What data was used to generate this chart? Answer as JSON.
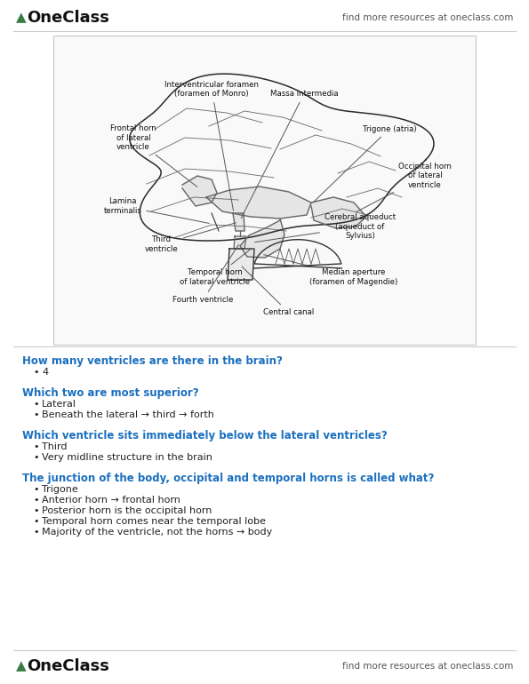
{
  "bg_color": "#ffffff",
  "header_logo_color": "#3a7d44",
  "header_right_text": "find more resources at oneclass.com",
  "footer_logo_color": "#3a7d44",
  "footer_right_text": "find more resources at oneclass.com",
  "divider_color": "#cccccc",
  "questions": [
    {
      "question": "How many ventricles are there in the brain?",
      "bullets": [
        "4"
      ]
    },
    {
      "question": "Which two are most superior?",
      "bullets": [
        "Lateral",
        "Beneath the lateral → third → forth"
      ]
    },
    {
      "question": "Which ventricle sits immediately below the lateral ventricles?",
      "bullets": [
        "Third",
        "Very midline structure in the brain"
      ]
    },
    {
      "question": "The junction of the body, occipital and temporal horns is called what?",
      "bullets": [
        "Trigone",
        "Anterior horn → frontal horn",
        "Posterior horn is the occipital horn",
        "Temporal horn comes near the temporal lobe",
        "Majority of the ventricle, not the horns → body"
      ]
    }
  ],
  "question_color": "#1a6fbf",
  "bullet_color": "#222222",
  "question_fontsize": 8.5,
  "bullet_fontsize": 8.0
}
